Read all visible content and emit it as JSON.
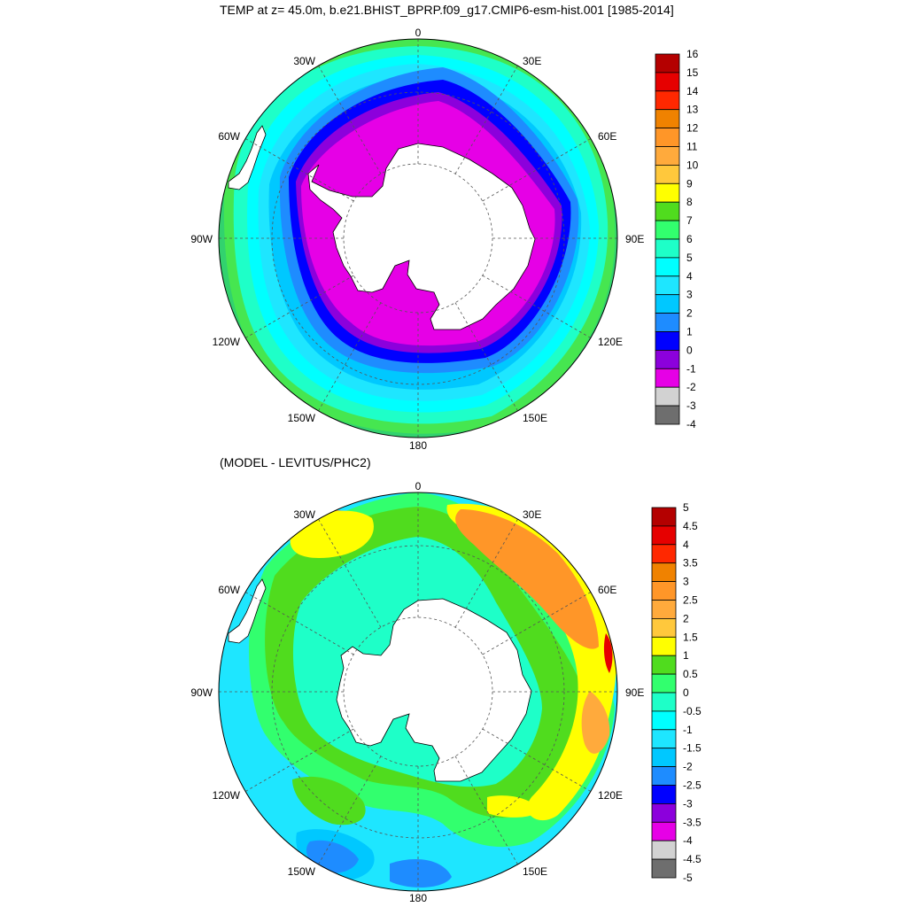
{
  "titles": {
    "top": "TEMP at z=  45.0m, b.e21.BHIST_BPRP.f09_g17.CMIP6-esm-hist.001 [1985-2014]",
    "bottom": "(MODEL - LEVITUS/PHC2)"
  },
  "longitude_labels": [
    "0",
    "30E",
    "60E",
    "90E",
    "120E",
    "150E",
    "180",
    "150W",
    "120W",
    "90W",
    "60W",
    "30W"
  ],
  "colorbars": {
    "top": {
      "labels": [
        "16",
        "15",
        "14",
        "13",
        "12",
        "11",
        "10",
        "9",
        "8",
        "7",
        "6",
        "5",
        "4",
        "3",
        "2",
        "1",
        "0",
        "-1",
        "-2",
        "-3",
        "-4"
      ],
      "colors": [
        "#b40000",
        "#e60000",
        "#ff2800",
        "#f08200",
        "#ff9628",
        "#ffaa3c",
        "#ffc83c",
        "#ffff00",
        "#50dc1e",
        "#32ff6e",
        "#1effc8",
        "#00ffff",
        "#1ee6ff",
        "#00c8ff",
        "#1e8cff",
        "#0000ff",
        "#8c00dc",
        "#e600e6",
        "#d2d2d2",
        "#6e6e6e"
      ]
    },
    "bottom": {
      "labels": [
        "5",
        "4.5",
        "4",
        "3.5",
        "3",
        "2.5",
        "2",
        "1.5",
        "1",
        "0.5",
        "0",
        "-0.5",
        "-1",
        "-1.5",
        "-2",
        "-2.5",
        "-3",
        "-3.5",
        "-4",
        "-4.5",
        "-5"
      ],
      "colors": [
        "#b40000",
        "#e60000",
        "#ff2800",
        "#f08200",
        "#ff9628",
        "#ffaa3c",
        "#ffc83c",
        "#ffff00",
        "#50dc1e",
        "#32ff6e",
        "#1effc8",
        "#00ffff",
        "#1ee6ff",
        "#00c8ff",
        "#1e8cff",
        "#0000ff",
        "#8c00dc",
        "#e600e6",
        "#d2d2d2",
        "#6e6e6e"
      ]
    }
  },
  "colors": {
    "land": "#ffffff",
    "top_field": {
      "outer": "#32d26e",
      "zones": [
        "#46e650",
        "#1effc8",
        "#00ffff",
        "#1ee6ff",
        "#00c8ff",
        "#1e8cff",
        "#0000ff",
        "#8c00dc",
        "#e600e6"
      ]
    },
    "bottom_field": {
      "background": "#1ee6ff",
      "inner": "#1effc8"
    }
  }
}
